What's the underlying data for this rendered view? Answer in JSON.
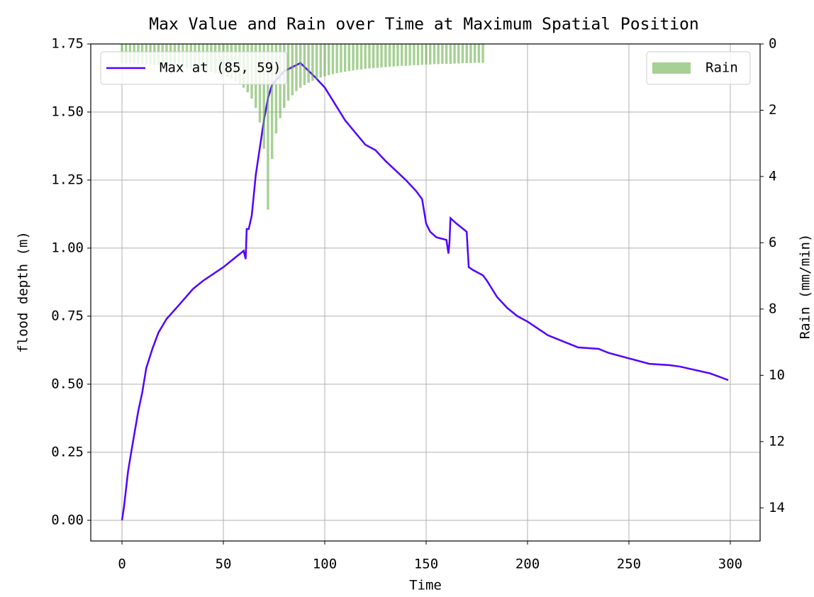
{
  "chart_data": {
    "type": "line",
    "title": "Max Value and Rain over Time at Maximum Spatial Position",
    "x_label": "Time",
    "y_label": "flood depth (m)",
    "y2_label": "Rain (mm/min)",
    "xlim": [
      -15.4,
      314.7
    ],
    "xticks": [
      0,
      50,
      100,
      150,
      200,
      250,
      300
    ],
    "ylim": [
      -0.076,
      1.75
    ],
    "yticks": [
      {
        "value": 0,
        "label": "0.00"
      },
      0.25,
      {
        "value": 0.5,
        "label": "0.50"
      },
      0.75,
      {
        "value": 1,
        "label": "1.00"
      },
      1.25,
      {
        "value": 1.5,
        "label": "1.50"
      },
      1.75
    ],
    "y2lim": [
      0,
      15
    ],
    "y2_inverted": true,
    "y2ticks": [
      0,
      2,
      4,
      6,
      8,
      10,
      12,
      14
    ],
    "grid": true,
    "y_color": "#3300ff",
    "y2_color": "#339900",
    "series": [
      {
        "name": "Max at (85, 59)",
        "color": "#5000ff",
        "legend": "upper left",
        "x": [
          0,
          1,
          3,
          5,
          8,
          10,
          12,
          15,
          18,
          22,
          28,
          35,
          40,
          50,
          55,
          60,
          61,
          61.5,
          62.5,
          64,
          66,
          68,
          70,
          72,
          74,
          80,
          88,
          95,
          100,
          105,
          110,
          120,
          125,
          130,
          140,
          145,
          148,
          150,
          152,
          155,
          160,
          161,
          161.5,
          162,
          165,
          170,
          171,
          173,
          178,
          180,
          185,
          190,
          195,
          200,
          210,
          220,
          225,
          235,
          240,
          250,
          260,
          270,
          275,
          290,
          299
        ],
        "values": [
          0.0,
          0.05,
          0.18,
          0.27,
          0.4,
          0.47,
          0.56,
          0.63,
          0.69,
          0.74,
          0.79,
          0.85,
          0.88,
          0.93,
          0.96,
          0.99,
          0.96,
          1.07,
          1.07,
          1.12,
          1.27,
          1.37,
          1.47,
          1.55,
          1.6,
          1.65,
          1.68,
          1.63,
          1.59,
          1.53,
          1.47,
          1.38,
          1.36,
          1.32,
          1.25,
          1.21,
          1.18,
          1.09,
          1.06,
          1.04,
          1.03,
          0.98,
          1.02,
          1.11,
          1.09,
          1.06,
          0.93,
          0.92,
          0.9,
          0.88,
          0.82,
          0.78,
          0.75,
          0.73,
          0.68,
          0.65,
          0.635,
          0.63,
          0.615,
          0.595,
          0.575,
          0.57,
          0.565,
          0.54,
          0.515
        ]
      },
      {
        "name": "Rain",
        "type": "bar",
        "axis": "y2",
        "color": "#6ab04c",
        "legend": "upper right",
        "x": [
          0,
          2,
          4,
          6,
          8,
          10,
          12,
          14,
          16,
          18,
          20,
          22,
          24,
          26,
          28,
          30,
          32,
          34,
          36,
          38,
          40,
          42,
          44,
          46,
          48,
          50,
          52,
          54,
          56,
          58,
          60,
          62,
          64,
          66,
          68,
          70,
          72,
          74,
          76,
          78,
          80,
          82,
          84,
          86,
          88,
          90,
          92,
          94,
          96,
          98,
          100,
          102,
          104,
          106,
          108,
          110,
          112,
          114,
          116,
          118,
          120,
          122,
          124,
          126,
          128,
          130,
          132,
          134,
          136,
          138,
          140,
          142,
          144,
          146,
          148,
          150,
          152,
          154,
          156,
          158,
          160,
          162,
          164,
          166,
          168,
          170,
          172,
          174,
          176,
          178
        ],
        "values": [
          0.58,
          0.59,
          0.59,
          0.6,
          0.61,
          0.61,
          0.62,
          0.63,
          0.63,
          0.64,
          0.65,
          0.66,
          0.67,
          0.68,
          0.69,
          0.71,
          0.72,
          0.74,
          0.75,
          0.77,
          0.79,
          0.82,
          0.85,
          0.88,
          0.91,
          0.95,
          1.0,
          1.06,
          1.13,
          1.21,
          1.32,
          1.46,
          1.65,
          1.93,
          2.37,
          3.16,
          5.0,
          3.47,
          2.7,
          2.24,
          1.93,
          1.71,
          1.55,
          1.42,
          1.32,
          1.24,
          1.17,
          1.11,
          1.06,
          1.01,
          0.98,
          0.94,
          0.91,
          0.88,
          0.86,
          0.84,
          0.82,
          0.8,
          0.78,
          0.77,
          0.75,
          0.74,
          0.73,
          0.72,
          0.71,
          0.7,
          0.69,
          0.68,
          0.67,
          0.66,
          0.66,
          0.65,
          0.64,
          0.64,
          0.63,
          0.62,
          0.62,
          0.61,
          0.61,
          0.6,
          0.6,
          0.6,
          0.59,
          0.59,
          0.58,
          0.58,
          0.58,
          0.57,
          0.57,
          0.57
        ]
      }
    ]
  }
}
